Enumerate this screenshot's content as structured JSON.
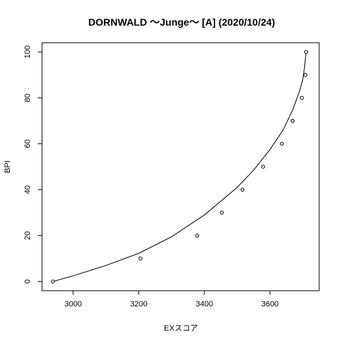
{
  "chart_data": {
    "type": "scatter",
    "title": "DORNWALD 〜Junge〜 [A] (2020/10/24)",
    "xlabel": "EXスコア",
    "ylabel": "BPI",
    "xlim": [
      2905,
      3750
    ],
    "ylim": [
      -4,
      104
    ],
    "x_ticks": [
      3000,
      3200,
      3400,
      3600
    ],
    "y_ticks": [
      0,
      20,
      40,
      60,
      80,
      100
    ],
    "grid": false,
    "legend": "none",
    "series": [
      {
        "points": [
          {
            "x": 2938,
            "y": 0
          },
          {
            "x": 3205,
            "y": 10
          },
          {
            "x": 3378,
            "y": 20
          },
          {
            "x": 3453,
            "y": 30
          },
          {
            "x": 3516,
            "y": 40
          },
          {
            "x": 3579,
            "y": 50
          },
          {
            "x": 3636,
            "y": 60
          },
          {
            "x": 3669,
            "y": 70
          },
          {
            "x": 3697,
            "y": 80
          },
          {
            "x": 3708,
            "y": 90
          },
          {
            "x": 3710,
            "y": 100
          }
        ]
      }
    ],
    "curve": [
      {
        "x": 2938,
        "y": 0
      },
      {
        "x": 3000,
        "y": 2.5
      },
      {
        "x": 3100,
        "y": 7.0
      },
      {
        "x": 3200,
        "y": 12.3
      },
      {
        "x": 3300,
        "y": 19.5
      },
      {
        "x": 3400,
        "y": 29.0
      },
      {
        "x": 3500,
        "y": 41.0
      },
      {
        "x": 3550,
        "y": 48.5
      },
      {
        "x": 3600,
        "y": 57.5
      },
      {
        "x": 3640,
        "y": 66.0
      },
      {
        "x": 3670,
        "y": 75.0
      },
      {
        "x": 3690,
        "y": 83.0
      },
      {
        "x": 3700,
        "y": 88.0
      },
      {
        "x": 3705,
        "y": 93.0
      },
      {
        "x": 3710,
        "y": 100
      }
    ]
  }
}
